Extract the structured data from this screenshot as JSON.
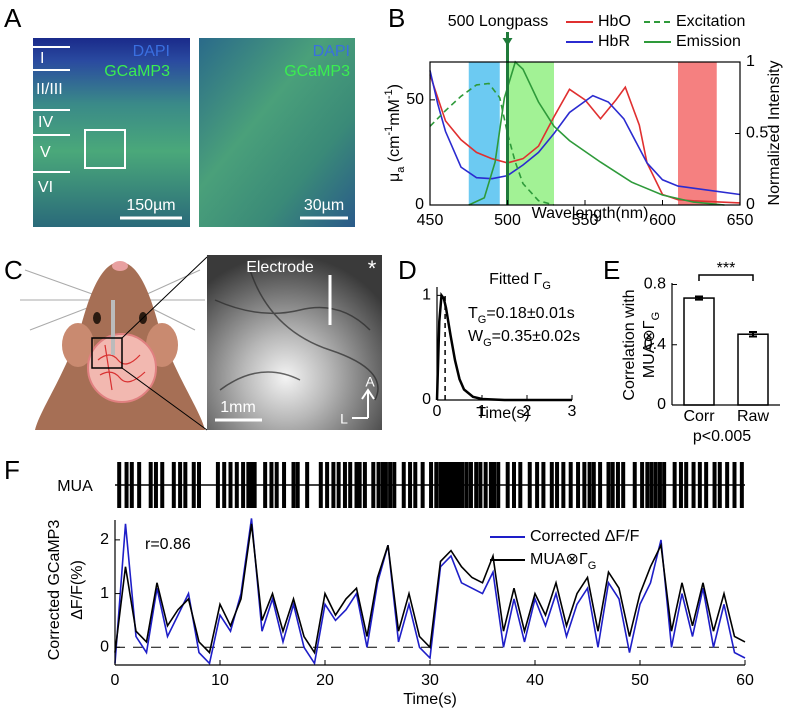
{
  "panel_labels": [
    "A",
    "B",
    "C",
    "D",
    "E",
    "F"
  ],
  "panel_a": {
    "left": {
      "stain1": "DAPI",
      "stain2": "GCaMP3",
      "layers": [
        "I",
        "II/III",
        "IV",
        "V",
        "VI"
      ],
      "scale_bar": "150µm"
    },
    "right": {
      "stain1": "DAPI",
      "stain2": "GCaMP3",
      "scale_bar": "30µm"
    }
  },
  "panel_c": {
    "electrode": "Electrode",
    "star": "*",
    "axis_a": "A",
    "axis_l": "L",
    "scale_bar": "1mm"
  },
  "chart_data": [
    {
      "type": "line",
      "xlabel": "Wavelength(nm)",
      "ylabel": [
        {
          "text": "μ"
        },
        {
          "text": "a",
          "shift": "sub"
        },
        {
          "text": " (cm"
        },
        {
          "text": "-1",
          "shift": "sup"
        },
        {
          "text": "mM"
        },
        {
          "text": "-1",
          "shift": "sup"
        },
        {
          "text": ")"
        }
      ],
      "y2label": "Normalized Intensity",
      "xlim": [
        450,
        650
      ],
      "xticks": [
        450,
        500,
        550,
        600,
        650
      ],
      "ylim": [
        0,
        68
      ],
      "yticks": [
        0,
        50
      ],
      "y2lim": [
        0,
        1
      ],
      "y2ticks": [
        0,
        0.5,
        1
      ],
      "bands": [
        {
          "xlim": [
            475,
            495
          ],
          "color": "#6ccaf2"
        },
        {
          "xlim": [
            500,
            530
          ],
          "color": "#a2f295"
        },
        {
          "xlim": [
            610,
            635
          ],
          "color": "#f58080"
        }
      ],
      "filter": {
        "label": "500 Longpass",
        "x": 500,
        "color": "#1f7a3a"
      },
      "series": [
        {
          "name": "HbO",
          "color": "#e03030",
          "x": [
            450,
            460,
            470,
            480,
            490,
            500,
            510,
            520,
            530,
            540,
            550,
            560,
            570,
            576,
            585,
            590,
            600,
            610,
            620,
            650
          ],
          "values": [
            62,
            40,
            31,
            25,
            22,
            20,
            22,
            28,
            42,
            55,
            50,
            41,
            50,
            56,
            38,
            20,
            5,
            2.5,
            2,
            1
          ]
        },
        {
          "name": "HbR",
          "color": "#2b2bd0",
          "x": [
            450,
            455,
            460,
            470,
            480,
            490,
            500,
            510,
            520,
            530,
            540,
            555,
            565,
            575,
            590,
            600,
            610,
            620,
            650
          ],
          "values": [
            64,
            48,
            35,
            18,
            13,
            12.5,
            14,
            19,
            25,
            34,
            44,
            52,
            49,
            41,
            20,
            12,
            9,
            8,
            5
          ]
        },
        {
          "name": "Excitation",
          "color": "#2e9a3a",
          "dash": true,
          "axis": "y2",
          "x": [
            450,
            460,
            470,
            480,
            488,
            495,
            500,
            505,
            510,
            520,
            530
          ],
          "values": [
            0.55,
            0.66,
            0.76,
            0.84,
            0.85,
            0.75,
            0.5,
            0.3,
            0.15,
            0.03,
            0
          ]
        },
        {
          "name": "Emission",
          "color": "#2e9a3a",
          "axis": "y2",
          "x": [
            475,
            485,
            492,
            498,
            505,
            510,
            520,
            530,
            540,
            560,
            580,
            600,
            620,
            640
          ],
          "values": [
            0,
            0.05,
            0.3,
            0.75,
            1,
            0.95,
            0.72,
            0.55,
            0.45,
            0.3,
            0.16,
            0.07,
            0.02,
            0
          ]
        }
      ]
    },
    {
      "type": "line",
      "title": [
        {
          "text": "Fitted Γ"
        },
        {
          "text": "G",
          "shift": "sub"
        }
      ],
      "xlabel": "Time(s)",
      "annotations": [
        [
          {
            "text": "T"
          },
          {
            "text": "G",
            "shift": "sub"
          },
          {
            "text": "=0.18±0.01s"
          }
        ],
        [
          {
            "text": "W"
          },
          {
            "text": "G",
            "shift": "sub"
          },
          {
            "text": "=0.35±0.02s"
          }
        ]
      ],
      "xlim": [
        0,
        3
      ],
      "xticks": [
        0,
        1,
        2,
        3
      ],
      "ylim": [
        0,
        1.08
      ],
      "yticks": [
        0,
        1
      ],
      "marker_x": 0.18,
      "series": [
        {
          "color": "#000000",
          "x": [
            0,
            0.05,
            0.1,
            0.15,
            0.2,
            0.3,
            0.4,
            0.5,
            0.6,
            0.8,
            1,
            1.5,
            3
          ],
          "values": [
            0,
            0.75,
            1,
            0.97,
            0.88,
            0.62,
            0.38,
            0.2,
            0.1,
            0.03,
            0.01,
            0,
            0
          ]
        }
      ]
    },
    {
      "type": "bar",
      "ylabel": [
        "Correlation with",
        [
          {
            "text": "MUA⊗Γ"
          },
          {
            "text": "G",
            "shift": "sub"
          }
        ]
      ],
      "categories": [
        "Corr",
        "Raw"
      ],
      "values": [
        0.71,
        0.47
      ],
      "errors": [
        0.01,
        0.015
      ],
      "ylim": [
        0,
        0.81
      ],
      "yticks": [
        0,
        0.4,
        0.8
      ],
      "significance": "***",
      "note": "p<0.005"
    },
    {
      "type": "raster",
      "label": "MUA",
      "xlim": [
        0,
        60
      ],
      "spike_times": [
        0.4,
        1.1,
        1.6,
        2.3,
        3.4,
        3.9,
        4.5,
        5.6,
        6.2,
        6.7,
        7.5,
        8.0,
        9.8,
        10.4,
        11.0,
        11.6,
        12.2,
        12.7,
        13.0,
        13.3,
        14.3,
        14.9,
        15.4,
        16.1,
        17.0,
        17.4,
        18.3,
        19.6,
        20.2,
        20.8,
        21.3,
        21.9,
        22.4,
        23.0,
        23.3,
        23.8,
        24.6,
        25.1,
        25.5,
        25.8,
        26.2,
        26.6,
        27.5,
        28.1,
        28.6,
        29.3,
        30.1,
        30.6,
        31.0,
        31.3,
        31.6,
        31.9,
        32.2,
        32.5,
        32.8,
        33.1,
        33.5,
        33.9,
        34.4,
        34.8,
        35.3,
        35.8,
        36.1,
        36.5,
        37.4,
        38.0,
        38.6,
        39.5,
        40.2,
        40.8,
        41.6,
        42.1,
        42.7,
        43.4,
        44.1,
        44.7,
        45.2,
        45.6,
        46.2,
        47.0,
        47.4,
        47.9,
        48.4,
        49.5,
        50.2,
        50.7,
        51.1,
        51.5,
        51.9,
        52.3,
        53.3,
        53.9,
        54.4,
        55.1,
        55.7,
        56.3,
        57.1,
        57.6,
        58.3,
        59.0,
        59.7
      ]
    },
    {
      "type": "line",
      "xlabel": "Time(s)",
      "ylabel": [
        "Corrected GCaMP3",
        "ΔF/F(%)"
      ],
      "annotations": [
        "r=0.86"
      ],
      "xlim": [
        0,
        60
      ],
      "xticks": [
        0,
        10,
        20,
        30,
        40,
        50,
        60
      ],
      "ylim": [
        -0.33,
        2.37
      ],
      "yticks": [
        0,
        1,
        2
      ],
      "zero_line": true,
      "x": [
        0,
        1,
        2,
        3,
        4,
        5,
        6,
        7,
        8,
        9,
        10,
        11,
        12,
        13,
        14,
        15,
        16,
        17,
        18,
        19,
        20,
        21,
        22,
        23,
        24,
        25,
        26,
        27,
        28,
        29,
        30,
        31,
        32,
        33,
        34,
        35,
        36,
        37,
        38,
        39,
        40,
        41,
        42,
        43,
        44,
        45,
        46,
        47,
        48,
        49,
        50,
        51,
        52,
        53,
        54,
        55,
        56,
        57,
        58,
        59,
        60
      ],
      "series": [
        {
          "name": "Corrected ΔF/F",
          "color": "#1e1ec8",
          "values": [
            -0.3,
            2.3,
            0.2,
            -0.1,
            1.1,
            0.2,
            0.6,
            1.0,
            -0.1,
            -0.3,
            0.6,
            0.3,
            1.0,
            2.4,
            0.3,
            0.9,
            0.1,
            0.8,
            0.0,
            -0.3,
            0.8,
            0.5,
            0.7,
            1.0,
            0.0,
            1.2,
            1.9,
            0.1,
            0.8,
            0.0,
            -0.2,
            1.5,
            1.7,
            1.2,
            1.1,
            1.0,
            1.4,
            0.0,
            0.9,
            0.1,
            0.9,
            0.4,
            1.0,
            0.2,
            0.8,
            1.1,
            0.0,
            1.2,
            0.9,
            -0.1,
            0.8,
            1.2,
            2.0,
            0.0,
            1.0,
            0.2,
            1.1,
            0.0,
            0.8,
            -0.1,
            -0.2
          ]
        },
        {
          "name": [
            {
              "text": "MUA⊗Γ"
            },
            {
              "text": "G",
              "shift": "sub"
            }
          ],
          "color": "#000000",
          "values": [
            -0.1,
            1.5,
            0.3,
            0.1,
            1.2,
            0.4,
            0.7,
            0.9,
            0.1,
            -0.1,
            0.8,
            0.4,
            0.9,
            2.3,
            0.5,
            1.0,
            0.3,
            0.9,
            0.2,
            -0.1,
            1.0,
            0.6,
            0.9,
            1.1,
            0.2,
            1.3,
            1.9,
            0.3,
            1.0,
            0.2,
            0.0,
            1.6,
            1.8,
            1.5,
            1.3,
            1.2,
            1.7,
            0.3,
            1.1,
            0.3,
            1.0,
            0.6,
            1.2,
            0.4,
            1.0,
            1.3,
            0.3,
            1.4,
            1.1,
            0.2,
            1.0,
            1.5,
            1.9,
            0.3,
            1.2,
            0.4,
            1.2,
            0.3,
            1.0,
            0.2,
            0.1
          ]
        }
      ]
    }
  ]
}
